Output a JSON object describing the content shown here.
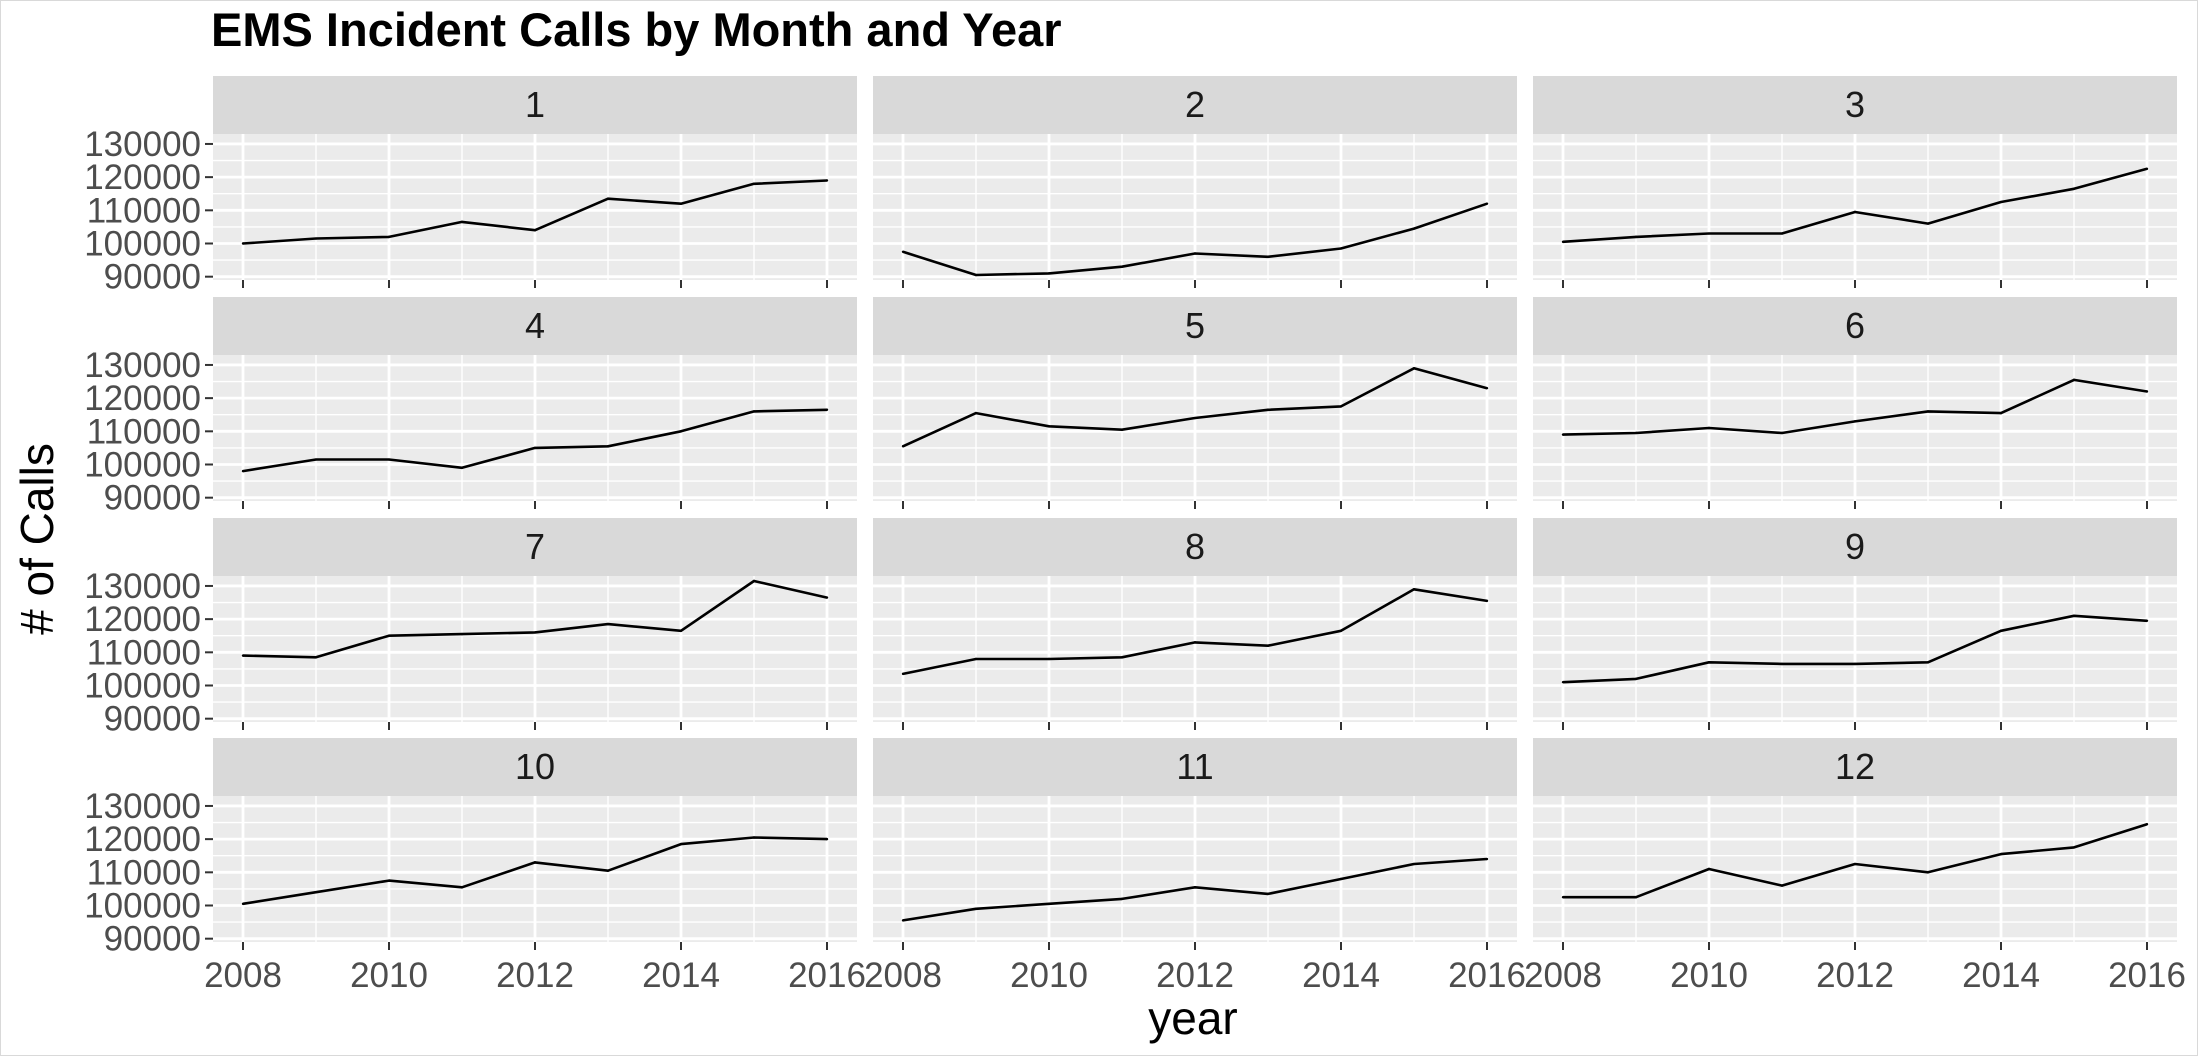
{
  "chart_data": {
    "type": "line",
    "title": "EMS Incident Calls by Month and Year",
    "xlabel": "year",
    "ylabel": "# of Calls",
    "x": [
      2008,
      2009,
      2010,
      2011,
      2012,
      2013,
      2014,
      2015,
      2016
    ],
    "xticks": [
      2008,
      2010,
      2012,
      2014,
      2016
    ],
    "xtick_labels": [
      "2008",
      "2010",
      "2012",
      "2014",
      "2016"
    ],
    "yticks": [
      90000,
      100000,
      110000,
      120000,
      130000
    ],
    "ytick_labels": [
      "90000",
      "100000",
      "110000",
      "120000",
      "130000"
    ],
    "xlim": [
      2008,
      2016
    ],
    "ylim": [
      89000,
      133000
    ],
    "grid": true,
    "facet_layout": "4 rows x 3 columns",
    "panels": [
      {
        "label": "1",
        "values": [
          100000,
          101500,
          102000,
          106500,
          104000,
          113500,
          112000,
          118000,
          119000
        ]
      },
      {
        "label": "2",
        "values": [
          97500,
          90500,
          91000,
          93000,
          97000,
          96000,
          98500,
          104500,
          112000
        ]
      },
      {
        "label": "3",
        "values": [
          100500,
          102000,
          103000,
          103000,
          109500,
          106000,
          112500,
          116500,
          122500
        ]
      },
      {
        "label": "4",
        "values": [
          98000,
          101500,
          101500,
          99000,
          105000,
          105500,
          110000,
          116000,
          116500
        ]
      },
      {
        "label": "5",
        "values": [
          105500,
          115500,
          111500,
          110500,
          114000,
          116500,
          117500,
          129000,
          123000
        ]
      },
      {
        "label": "6",
        "values": [
          109000,
          109500,
          111000,
          109500,
          113000,
          116000,
          115500,
          125500,
          122000
        ]
      },
      {
        "label": "7",
        "values": [
          109000,
          108500,
          115000,
          115500,
          116000,
          118500,
          116500,
          131500,
          126500
        ]
      },
      {
        "label": "8",
        "values": [
          103500,
          108000,
          108000,
          108500,
          113000,
          112000,
          116500,
          129000,
          125500
        ]
      },
      {
        "label": "9",
        "values": [
          101000,
          102000,
          107000,
          106500,
          106500,
          107000,
          116500,
          121000,
          119500
        ]
      },
      {
        "label": "10",
        "values": [
          100500,
          104000,
          107500,
          105500,
          113000,
          110500,
          118500,
          120500,
          120000
        ]
      },
      {
        "label": "11",
        "values": [
          95500,
          99000,
          100500,
          102000,
          105500,
          103500,
          108000,
          112500,
          114000
        ]
      },
      {
        "label": "12",
        "values": [
          102500,
          102500,
          111000,
          106000,
          112500,
          110000,
          115500,
          117500,
          124500
        ]
      }
    ],
    "colors": {
      "panel_background": "#ebebeb",
      "strip_background": "#d9d9d9",
      "grid": "#ffffff",
      "line": "#000000",
      "tick_text": "#4d4d4d"
    }
  }
}
